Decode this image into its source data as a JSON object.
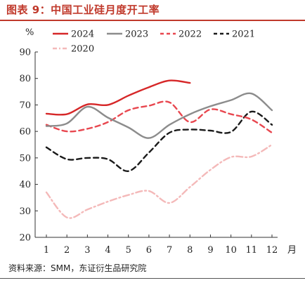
{
  "figure": {
    "title": "图表 9：中国工业硅月度开工率",
    "source": "资料来源：SMM，东证衍生品研究院",
    "title_color": "#c0392b"
  },
  "chart_data": {
    "type": "line",
    "title": "",
    "ylabel": "%",
    "xlabel": "月",
    "ylim": [
      20,
      90
    ],
    "yticks": [
      20,
      30,
      40,
      50,
      60,
      70,
      80,
      90
    ],
    "x": [
      1,
      2,
      3,
      4,
      5,
      6,
      7,
      8,
      9,
      10,
      11,
      12
    ],
    "legend_position": "top",
    "grid": false,
    "series": [
      {
        "name": "2024",
        "color": "#d62728",
        "dash": "solid",
        "width": 2.4,
        "values": [
          66.7,
          66.5,
          70.2,
          70.0,
          73.5,
          76.7,
          79.2,
          78.3,
          null,
          null,
          null,
          null
        ]
      },
      {
        "name": "2023",
        "color": "#8c8c8c",
        "dash": "solid",
        "width": 2.4,
        "values": [
          62.0,
          63.0,
          69.3,
          65.2,
          61.5,
          57.5,
          62.5,
          66.5,
          69.5,
          71.8,
          74.3,
          68.0
        ]
      },
      {
        "name": "2022",
        "color": "#e8474f",
        "dash": "dashed",
        "width": 2.4,
        "values": [
          62.5,
          60.0,
          61.0,
          63.5,
          68.0,
          69.7,
          71.0,
          63.5,
          68.3,
          66.5,
          64.5,
          59.5
        ]
      },
      {
        "name": "2021",
        "color": "#1a1a1a",
        "dash": "dashed",
        "width": 2.4,
        "values": [
          54.0,
          49.5,
          50.0,
          49.5,
          45.0,
          52.0,
          59.5,
          60.7,
          60.3,
          59.8,
          67.5,
          62.5
        ]
      },
      {
        "name": "2020",
        "color": "#f4b9b9",
        "dash": "dashdot",
        "width": 2.4,
        "values": [
          37.0,
          27.5,
          30.5,
          33.5,
          36.0,
          37.5,
          33.0,
          39.0,
          45.5,
          50.3,
          50.5,
          55.0
        ]
      }
    ]
  }
}
